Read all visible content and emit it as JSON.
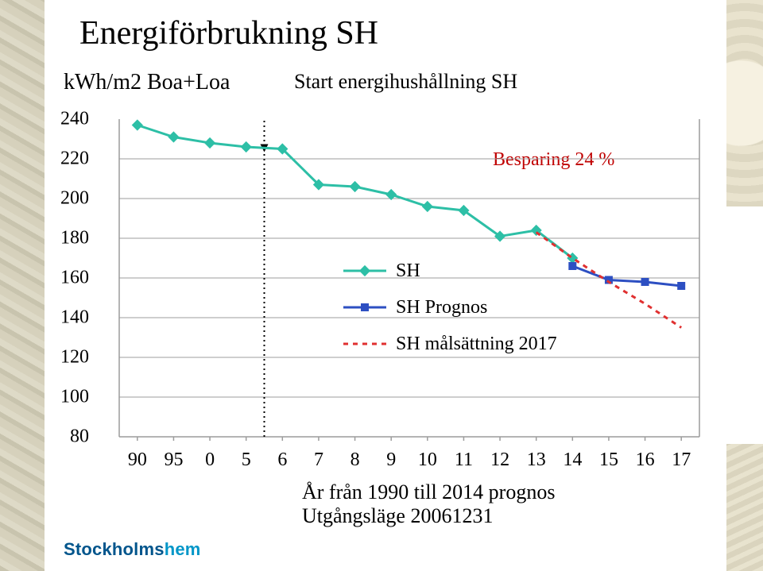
{
  "title": "Energiförbrukning SH",
  "y_axis_label": "kWh/m2 Boa+Loa",
  "annotation_start": "Start energihushållning SH",
  "annotation_besparing_label": "Besparing 24 %",
  "annotation_besparing_color": "#c00000",
  "x_axis_label_line1": "År från 1990 till 2014 prognos",
  "x_axis_label_line2": "Utgångsläge 20061231",
  "brand_part1": "Stockholms",
  "brand_part2": "hem",
  "chart": {
    "type": "line",
    "xlim": [
      -1,
      18
    ],
    "ylim": [
      80,
      240
    ],
    "ytick_step": 20,
    "x_categories": [
      "90",
      "95",
      "0",
      "5",
      "6",
      "7",
      "8",
      "9",
      "10",
      "11",
      "12",
      "13",
      "14",
      "15",
      "16",
      "17"
    ],
    "background_color": "#ffffff",
    "grid_color": "#9c9c9c",
    "grid_dash": "none",
    "title_fontsize": 42,
    "label_fontsize": 26,
    "tick_fontsize": 24,
    "start_marker_x_index": 4,
    "start_arrow_color": "#000000",
    "series": [
      {
        "name": "SH",
        "legend_label": "SH",
        "type": "line",
        "color": "#2dbfa6",
        "line_width": 3,
        "marker": "diamond",
        "marker_size": 10,
        "marker_fill": "#2dbfa6",
        "x_indices": [
          0,
          1,
          2,
          3,
          4,
          5,
          6,
          7,
          8,
          9,
          10,
          11,
          12
        ],
        "y": [
          237,
          231,
          228,
          226,
          225,
          207,
          206,
          202,
          196,
          194,
          181,
          184,
          170
        ]
      },
      {
        "name": "SH_Prognos",
        "legend_label": "SH Prognos",
        "type": "line",
        "color": "#2d4fc2",
        "line_width": 3,
        "marker": "square",
        "marker_size": 10,
        "marker_fill": "#2d4fc2",
        "x_indices": [
          12,
          13,
          14,
          15
        ],
        "y": [
          166,
          159,
          158,
          156
        ]
      },
      {
        "name": "SH_malsattning",
        "legend_label": "SH målsättning 2017",
        "type": "line",
        "color": "#e03030",
        "line_width": 3,
        "dash": "6,6",
        "marker": "none",
        "x_indices": [
          11,
          12,
          13,
          14,
          15
        ],
        "y": [
          183,
          170,
          158,
          147,
          135
        ]
      }
    ]
  }
}
